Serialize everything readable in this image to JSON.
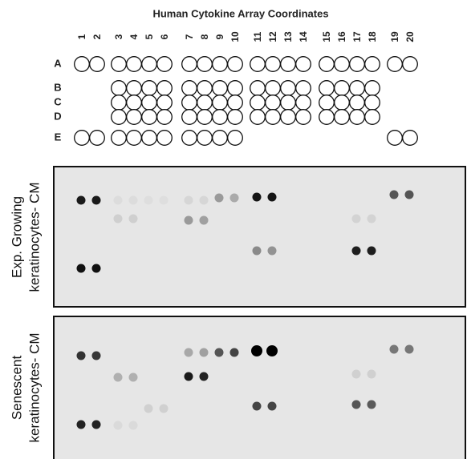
{
  "title": "Human Cytokine Array Coordinates",
  "columns": [
    "1",
    "2",
    "3",
    "4",
    "5",
    "6",
    "7",
    "8",
    "9",
    "10",
    "11",
    "12",
    "13",
    "14",
    "15",
    "16",
    "17",
    "18",
    "19",
    "20"
  ],
  "rows": [
    "A",
    "B",
    "C",
    "D",
    "E"
  ],
  "panels": [
    {
      "label_lines": [
        "Exp. Growing",
        "keratinocytes- CM"
      ]
    },
    {
      "label_lines": [
        "Senescent",
        "keratinocytes- CM"
      ]
    }
  ]
}
